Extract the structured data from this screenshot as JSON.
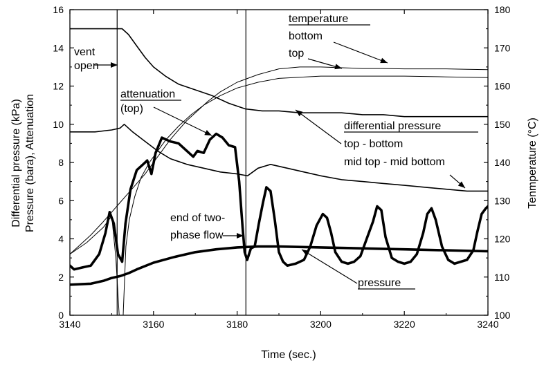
{
  "chart_data": {
    "type": "line",
    "xlabel": "Time (sec.)",
    "ylabel_left": [
      "Differential pressure (kPa)",
      "Pressure (bara), Attenuation"
    ],
    "ylabel_right": "Tenmperature (°C)",
    "xlim": [
      3140,
      3240
    ],
    "ylim_left": [
      0,
      16
    ],
    "ylim_right": [
      100,
      180
    ],
    "x_ticks": [
      3140,
      3160,
      3180,
      3200,
      3220,
      3240
    ],
    "y_left_ticks": [
      0,
      2,
      4,
      6,
      8,
      10,
      12,
      14,
      16
    ],
    "y_right_ticks": [
      100,
      110,
      120,
      130,
      140,
      150,
      160,
      170,
      180
    ],
    "grid": false,
    "vertical_markers": [
      3151.3,
      3182.1
    ],
    "series": [
      {
        "name": "differential pressure top - bottom",
        "axis": "left",
        "style": "medium",
        "x": [
          3140,
          3146,
          3150,
          3152.5,
          3154,
          3156,
          3158,
          3160,
          3163,
          3166,
          3170,
          3174,
          3178,
          3182,
          3186,
          3190,
          3195,
          3200,
          3205,
          3210,
          3215,
          3220,
          3225,
          3230,
          3235,
          3240
        ],
        "y": [
          15.0,
          15.0,
          15.0,
          15.0,
          14.7,
          14.1,
          13.5,
          13.0,
          12.5,
          12.1,
          11.8,
          11.5,
          11.1,
          10.8,
          10.7,
          10.7,
          10.6,
          10.6,
          10.6,
          10.5,
          10.5,
          10.4,
          10.4,
          10.4,
          10.4,
          10.4
        ]
      },
      {
        "name": "differential pressure mid top - mid bottom",
        "axis": "left",
        "style": "medium",
        "x": [
          3140,
          3146,
          3150,
          3152,
          3153,
          3155,
          3158,
          3161,
          3164,
          3168,
          3172,
          3176,
          3180,
          3182.5,
          3185,
          3188,
          3192,
          3196,
          3200,
          3205,
          3210,
          3215,
          3220,
          3225,
          3230,
          3235,
          3240
        ],
        "y": [
          9.6,
          9.6,
          9.7,
          9.8,
          10.0,
          9.6,
          9.1,
          8.6,
          8.2,
          7.9,
          7.7,
          7.5,
          7.4,
          7.3,
          7.7,
          7.9,
          7.7,
          7.5,
          7.3,
          7.1,
          7.0,
          6.9,
          6.8,
          6.7,
          6.6,
          6.5,
          6.5
        ]
      },
      {
        "name": "attenuation (top)",
        "axis": "left",
        "style": "thick",
        "x": [
          3140,
          3141,
          3143,
          3145,
          3147,
          3148.5,
          3149.5,
          3150.5,
          3151.5,
          3152.5,
          3153.3,
          3154.5,
          3156,
          3157.5,
          3158.5,
          3159.5,
          3160.5,
          3162,
          3164,
          3166,
          3168,
          3169.5,
          3170.5,
          3172,
          3173.5,
          3175,
          3176.5,
          3178,
          3179.5,
          3180.5,
          3181.3,
          3181.8,
          3182.4,
          3183.3,
          3184.2,
          3185.2,
          3186.2,
          3187,
          3188,
          3189,
          3190,
          3191,
          3192,
          3194,
          3196,
          3197.5,
          3199,
          3200.5,
          3201.5,
          3202.5,
          3203.5,
          3205,
          3206.5,
          3208,
          3209.5,
          3211,
          3212.5,
          3213.5,
          3214.5,
          3215.5,
          3217,
          3218.5,
          3220,
          3221.5,
          3223,
          3224.5,
          3225.5,
          3226.5,
          3227.5,
          3229,
          3230.5,
          3232,
          3233.5,
          3235,
          3236.5,
          3237.5,
          3238.5,
          3239.5,
          3240
        ],
        "y": [
          2.6,
          2.4,
          2.5,
          2.6,
          3.2,
          4.3,
          5.4,
          4.8,
          3.2,
          2.8,
          4.8,
          6.6,
          7.6,
          7.9,
          8.1,
          7.4,
          8.5,
          9.3,
          9.1,
          9.0,
          8.6,
          8.3,
          8.6,
          8.5,
          9.2,
          9.5,
          9.3,
          8.9,
          8.8,
          7.0,
          4.6,
          3.3,
          2.9,
          3.5,
          3.6,
          4.8,
          5.9,
          6.7,
          6.5,
          5.0,
          3.3,
          2.8,
          2.6,
          2.7,
          2.9,
          3.6,
          4.7,
          5.3,
          5.1,
          4.3,
          3.3,
          2.8,
          2.7,
          2.8,
          3.1,
          4.0,
          4.9,
          5.7,
          5.5,
          4.1,
          3.0,
          2.8,
          2.7,
          2.8,
          3.2,
          4.3,
          5.3,
          5.6,
          5.0,
          3.6,
          2.9,
          2.7,
          2.8,
          2.9,
          3.4,
          4.4,
          5.3,
          5.6,
          5.7
        ]
      },
      {
        "name": "pressure",
        "axis": "left",
        "style": "thick",
        "x": [
          3140,
          3145,
          3148,
          3150,
          3152,
          3154,
          3156,
          3160,
          3165,
          3170,
          3175,
          3180,
          3185,
          3190,
          3200,
          3210,
          3220,
          3230,
          3240
        ],
        "y": [
          1.6,
          1.65,
          1.8,
          1.95,
          2.05,
          2.2,
          2.4,
          2.75,
          3.05,
          3.3,
          3.45,
          3.55,
          3.6,
          3.6,
          3.55,
          3.5,
          3.45,
          3.4,
          3.35
        ]
      },
      {
        "name": "temperature bottom",
        "axis": "right",
        "style": "thin",
        "x": [
          3140,
          3142,
          3145,
          3148,
          3150,
          3152,
          3154,
          3156,
          3158,
          3160,
          3162,
          3164,
          3166,
          3168,
          3170,
          3173,
          3176,
          3180,
          3185,
          3190,
          3195,
          3200,
          3205,
          3210,
          3215,
          3220,
          3225,
          3230,
          3235,
          3240
        ],
        "y": [
          116,
          118,
          121,
          124.5,
          127,
          129.5,
          132,
          134.5,
          137,
          140,
          143,
          146,
          148.5,
          151,
          153,
          156,
          158.5,
          161,
          163,
          164.5,
          165,
          165,
          164.8,
          164.6,
          164.6,
          164.5,
          164.5,
          164.5,
          164.4,
          164.3
        ]
      },
      {
        "name": "temperature top",
        "axis": "right",
        "style": "thin",
        "x": [
          3140,
          3144,
          3148,
          3150,
          3151,
          3152,
          3152.6,
          3153.4,
          3154.2,
          3155.5,
          3157,
          3159,
          3161,
          3163,
          3166,
          3169,
          3172,
          3176,
          3180,
          3185,
          3190,
          3200,
          3210,
          3220,
          3230,
          3240
        ],
        "y": [
          116,
          119,
          123,
          126,
          115,
          96,
          96,
          118,
          125,
          131,
          136,
          140,
          143,
          146,
          149.5,
          152.5,
          155,
          157.5,
          159.5,
          161,
          162,
          162.6,
          162.6,
          162.6,
          162.4,
          162.2
        ]
      }
    ],
    "annotations": [
      {
        "text": "vent",
        "underline": false
      },
      {
        "text": "open",
        "underline": false
      },
      {
        "text": "attenuation",
        "underline": true
      },
      {
        "text": "(top)",
        "underline": false
      },
      {
        "text": "temperature",
        "underline": true
      },
      {
        "text": "bottom",
        "underline": false
      },
      {
        "text": "top",
        "underline": false
      },
      {
        "text": "differential pressure",
        "underline": true
      },
      {
        "text": "top - bottom",
        "underline": false
      },
      {
        "text": "mid top - mid bottom",
        "underline": false
      },
      {
        "text": "end of two-",
        "underline": false
      },
      {
        "text": "phase flow",
        "underline": false
      },
      {
        "text": "pressure",
        "underline": true
      }
    ]
  }
}
